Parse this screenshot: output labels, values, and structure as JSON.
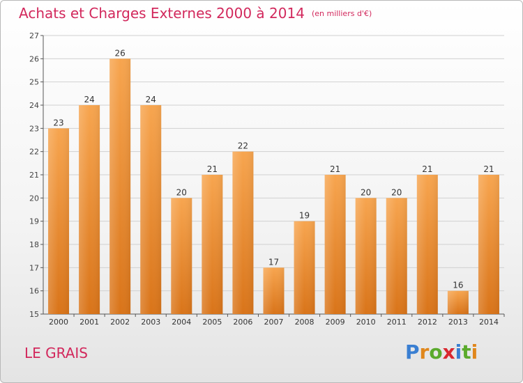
{
  "title": "Achats et Charges Externes 2000 à 2014",
  "subtitle": "(en milliers d'€)",
  "place_name": "LE GRAIS",
  "logo": {
    "text": "Proxiti",
    "letters": [
      {
        "ch": "P",
        "color": "#3a7fd2"
      },
      {
        "ch": "r",
        "color": "#e0871c"
      },
      {
        "ch": "o",
        "color": "#5aaa2c"
      },
      {
        "ch": "x",
        "color": "#d9282f"
      },
      {
        "ch": "i",
        "color": "#3a7fd2"
      },
      {
        "ch": "t",
        "color": "#5aaa2c"
      },
      {
        "ch": "i",
        "color": "#e0871c"
      }
    ]
  },
  "colors": {
    "title": "#d2285c",
    "bar_light": "#f7a54f",
    "bar_dark": "#d97419",
    "grid": "#d0d0d0",
    "axis": "#555555"
  },
  "chart_data": {
    "type": "bar",
    "title": "Achats et Charges Externes 2000 à 2014",
    "subtitle": "(en milliers d'€)",
    "categories": [
      "2000",
      "2001",
      "2002",
      "2003",
      "2004",
      "2005",
      "2006",
      "2007",
      "2008",
      "2009",
      "2010",
      "2011",
      "2012",
      "2013",
      "2014"
    ],
    "values": [
      23,
      24,
      26,
      24,
      20,
      21,
      22,
      17,
      19,
      21,
      20,
      20,
      21,
      16,
      21
    ],
    "ylim": [
      15,
      27
    ],
    "yticks": [
      15,
      16,
      17,
      18,
      19,
      20,
      21,
      22,
      23,
      24,
      25,
      26,
      27
    ],
    "xlabel": "",
    "ylabel": "",
    "grid": true,
    "legend": "none"
  }
}
